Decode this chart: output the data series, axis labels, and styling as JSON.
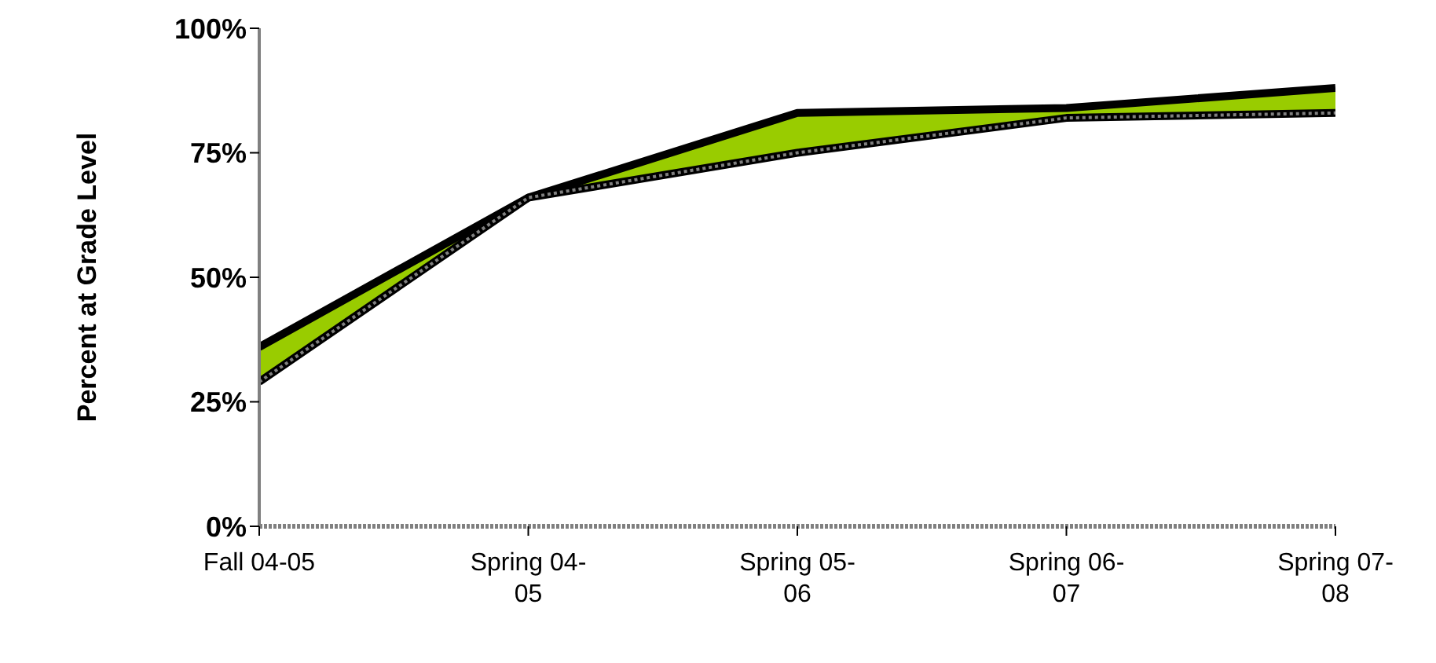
{
  "chart_data": {
    "type": "line",
    "ylabel": "Percent at Grade Level",
    "categories": [
      "Fall 04-05",
      "Spring 04-05",
      "Spring 05-06",
      "Spring 06-07",
      "Spring 07-08"
    ],
    "series": [
      {
        "type": "area",
        "color": "#99cc00",
        "values": [
          36,
          66,
          83,
          84,
          88
        ]
      },
      {
        "color": "#808080",
        "line_style": "dotted",
        "values": [
          29,
          66,
          75,
          82,
          83
        ]
      }
    ],
    "ylim": [
      0,
      100
    ],
    "yticks": [
      {
        "value": 0,
        "label": "0%"
      },
      {
        "value": 25,
        "label": "25%"
      },
      {
        "value": 50,
        "label": "50%"
      },
      {
        "value": 75,
        "label": "75%"
      },
      {
        "value": 100,
        "label": "100%"
      }
    ],
    "grid": false,
    "legend": false
  }
}
